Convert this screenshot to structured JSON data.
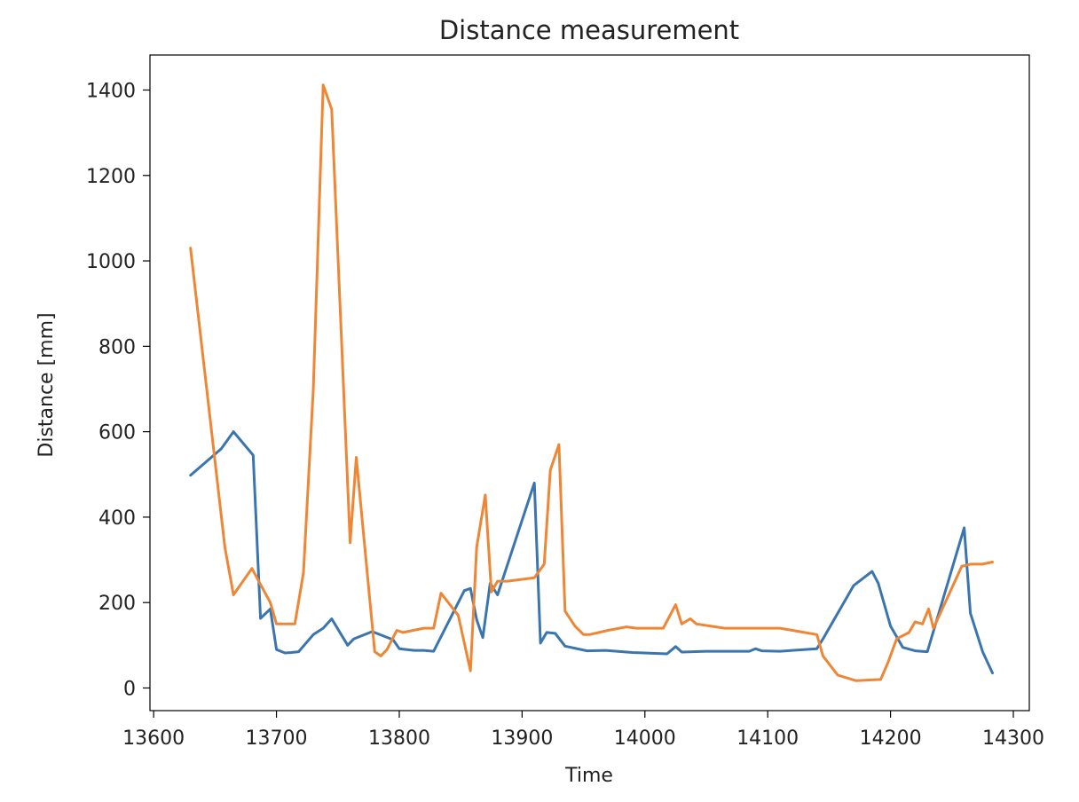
{
  "chart_data": {
    "type": "line",
    "title": "Distance measurement",
    "xlabel": "Time",
    "ylabel": "Distance [mm]",
    "xlim": [
      13597,
      14313
    ],
    "ylim": [
      -53,
      1482
    ],
    "xticks": [
      13600,
      13700,
      13800,
      13900,
      14000,
      14100,
      14200,
      14300
    ],
    "yticks": [
      0,
      200,
      400,
      600,
      800,
      1000,
      1200,
      1400
    ],
    "grid": false,
    "legend": "none",
    "series": [
      {
        "color": "#3b75af",
        "x": [
          13630,
          13655,
          13665,
          13681,
          13687,
          13695,
          13700,
          13707,
          13712,
          13718,
          13730,
          13738,
          13745,
          13758,
          13763,
          13778,
          13795,
          13800,
          13812,
          13820,
          13828,
          13853,
          13858,
          13863,
          13868,
          13874,
          13880,
          13910,
          13915,
          13920,
          13927,
          13935,
          13953,
          13968,
          13990,
          14018,
          14025,
          14030,
          14050,
          14070,
          14085,
          14090,
          14095,
          14110,
          14140,
          14145,
          14170,
          14185,
          14190,
          14200,
          14210,
          14220,
          14230,
          14260,
          14265,
          14275,
          14283
        ],
        "values": [
          498,
          560,
          600,
          545,
          163,
          185,
          90,
          82,
          83,
          85,
          125,
          140,
          162,
          100,
          115,
          132,
          113,
          92,
          88,
          88,
          86,
          228,
          233,
          160,
          118,
          245,
          218,
          480,
          105,
          130,
          128,
          98,
          87,
          88,
          83,
          80,
          97,
          84,
          86,
          86,
          86,
          92,
          87,
          86,
          92,
          115,
          240,
          273,
          245,
          145,
          95,
          87,
          85,
          375,
          175,
          85,
          35
        ]
      },
      {
        "color": "#ef8636",
        "x": [
          13630,
          13658,
          13665,
          13680,
          13695,
          13700,
          13707,
          13715,
          13722,
          13730,
          13738,
          13745,
          13760,
          13765,
          13780,
          13785,
          13790,
          13798,
          13803,
          13820,
          13828,
          13834,
          13848,
          13858,
          13863,
          13870,
          13875,
          13880,
          13888,
          13910,
          13918,
          13923,
          13930,
          13935,
          13943,
          13950,
          13955,
          13970,
          13985,
          13993,
          14015,
          14025,
          14030,
          14037,
          14042,
          14065,
          14100,
          14110,
          14140,
          14145,
          14157,
          14172,
          14192,
          14198,
          14205,
          14215,
          14220,
          14226,
          14231,
          14235,
          14258,
          14265,
          14275,
          14283
        ],
        "values": [
          1030,
          330,
          218,
          280,
          200,
          150,
          150,
          150,
          270,
          700,
          1412,
          1355,
          340,
          540,
          85,
          75,
          90,
          135,
          130,
          140,
          140,
          222,
          170,
          40,
          330,
          452,
          225,
          250,
          250,
          258,
          290,
          510,
          570,
          180,
          145,
          125,
          125,
          135,
          143,
          140,
          140,
          195,
          150,
          162,
          150,
          140,
          140,
          140,
          125,
          75,
          30,
          17,
          20,
          60,
          115,
          130,
          155,
          150,
          185,
          140,
          285,
          290,
          290,
          295
        ]
      }
    ]
  }
}
